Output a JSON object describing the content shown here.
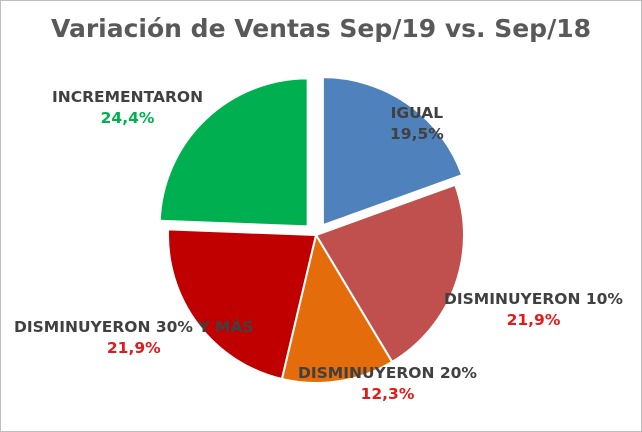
{
  "chart_data": {
    "type": "pie",
    "title": "Variación de Ventas Sep/19 vs. Sep/18",
    "slices": [
      {
        "label": "IGUAL",
        "value": 19.5,
        "value_label": "19,5%",
        "color": "#4f81bd",
        "value_color": "#404040",
        "exploded": true
      },
      {
        "label": "DISMINUYERON 10%",
        "value": 21.9,
        "value_label": "21,9%",
        "color": "#c0504d",
        "value_color": "#e3191c",
        "exploded": false
      },
      {
        "label": "DISMINUYERON 20%",
        "value": 12.3,
        "value_label": "12,3%",
        "color": "#e46c0a",
        "value_color": "#e3191c",
        "exploded": false
      },
      {
        "label": "DISMINUYERON 30% Y MÁS",
        "value": 21.9,
        "value_label": "21,9%",
        "color": "#c00000",
        "value_color": "#e3191c",
        "exploded": false
      },
      {
        "label": "INCREMENTARON",
        "value": 24.4,
        "value_label": "24,4%",
        "color": "#00b050",
        "value_color": "#00b050",
        "exploded": true
      }
    ]
  }
}
